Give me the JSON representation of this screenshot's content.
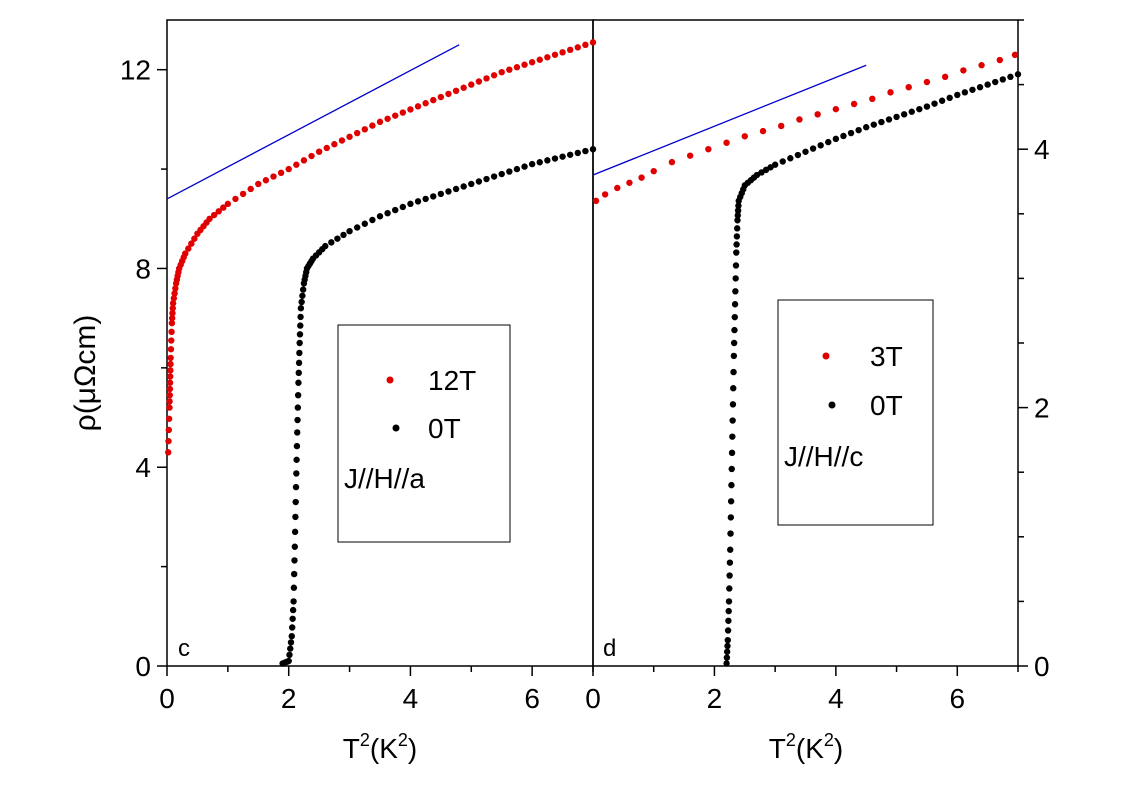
{
  "chart_data": [
    {
      "panel_label": "c",
      "type": "scatter",
      "xlabel_base": "T",
      "xlabel_sup1": "2",
      "xlabel_mid": "(K",
      "xlabel_sup2": "2",
      "xlabel_end": ")",
      "ylabel": "ρ(μΩcm)",
      "xlim": [
        0,
        7
      ],
      "ylim": [
        0,
        13
      ],
      "xticks": [
        "0",
        "2",
        "4",
        "6"
      ],
      "yticks": [
        "0",
        "4",
        "8",
        "12"
      ],
      "legend": {
        "entries": [
          {
            "label": "12T",
            "color": "#e00000"
          },
          {
            "label": "0T",
            "color": "#000000"
          }
        ],
        "note": "J//H//a"
      },
      "guide_line": {
        "x": [
          0,
          4.8
        ],
        "y": [
          9.4,
          12.5
        ],
        "color": "#0000cc"
      },
      "series": [
        {
          "name": "12T",
          "color": "#e00000",
          "x": [
            0.02,
            0.04,
            0.05,
            0.06,
            0.08,
            0.1,
            0.15,
            0.2,
            0.3,
            0.5,
            0.7,
            1.0,
            1.5,
            2.0,
            2.5,
            3.0,
            3.5,
            4.0,
            4.5,
            5.0,
            5.5,
            6.0,
            6.5,
            7.0
          ],
          "y": [
            4.3,
            5.2,
            5.7,
            6.2,
            6.9,
            7.3,
            7.7,
            8.0,
            8.3,
            8.7,
            9.0,
            9.3,
            9.7,
            10.0,
            10.35,
            10.65,
            10.95,
            11.2,
            11.45,
            11.7,
            11.95,
            12.15,
            12.35,
            12.55
          ]
        },
        {
          "name": "0T",
          "color": "#000000",
          "x": [
            1.9,
            2.0,
            2.05,
            2.08,
            2.1,
            2.12,
            2.14,
            2.16,
            2.18,
            2.2,
            2.25,
            2.3,
            2.4,
            2.6,
            3.0,
            3.5,
            4.0,
            4.5,
            5.0,
            5.5,
            6.0,
            6.5,
            7.0
          ],
          "y": [
            0.05,
            0.1,
            0.6,
            1.3,
            2.4,
            3.6,
            4.7,
            5.7,
            6.5,
            7.2,
            7.7,
            8.0,
            8.2,
            8.45,
            8.75,
            9.05,
            9.3,
            9.5,
            9.7,
            9.9,
            10.1,
            10.25,
            10.4
          ]
        }
      ]
    },
    {
      "panel_label": "d",
      "type": "scatter",
      "xlabel_base": "T",
      "xlabel_sup1": "2",
      "xlabel_mid": "(K",
      "xlabel_sup2": "2",
      "xlabel_end": ")",
      "xlim": [
        0,
        7
      ],
      "ylim": [
        0,
        5
      ],
      "xticks": [
        "0",
        "2",
        "4",
        "6"
      ],
      "yticks_right": [
        "0",
        "2",
        "4"
      ],
      "legend": {
        "entries": [
          {
            "label": "3T",
            "color": "#e00000"
          },
          {
            "label": "0T",
            "color": "#000000"
          }
        ],
        "note": "J//H//c"
      },
      "guide_line": {
        "x": [
          0,
          4.5
        ],
        "y": [
          3.8,
          4.65
        ],
        "color": "#0000cc"
      },
      "series": [
        {
          "name": "3T",
          "color": "#e00000",
          "x": [
            0.05,
            0.2,
            0.4,
            0.6,
            0.8,
            1.0,
            1.3,
            1.6,
            1.9,
            2.2,
            2.5,
            2.8,
            3.1,
            3.4,
            3.7,
            4.0,
            4.3,
            4.6,
            4.9,
            5.2,
            5.5,
            5.8,
            6.1,
            6.4,
            6.7,
            6.95
          ],
          "y": [
            3.6,
            3.65,
            3.7,
            3.74,
            3.78,
            3.83,
            3.9,
            3.95,
            4.0,
            4.05,
            4.1,
            4.14,
            4.18,
            4.23,
            4.27,
            4.31,
            4.35,
            4.39,
            4.44,
            4.48,
            4.52,
            4.56,
            4.61,
            4.65,
            4.69,
            4.73
          ]
        },
        {
          "name": "0T",
          "color": "#000000",
          "x": [
            2.2,
            2.22,
            2.24,
            2.26,
            2.28,
            2.3,
            2.32,
            2.34,
            2.36,
            2.38,
            2.4,
            2.5,
            2.7,
            3.0,
            3.5,
            4.0,
            4.5,
            5.0,
            5.5,
            6.0,
            6.5,
            7.0
          ],
          "y": [
            0.02,
            0.2,
            0.5,
            0.9,
            1.4,
            1.9,
            2.4,
            2.8,
            3.2,
            3.45,
            3.6,
            3.72,
            3.8,
            3.88,
            3.98,
            4.08,
            4.17,
            4.25,
            4.33,
            4.42,
            4.5,
            4.58
          ]
        }
      ]
    }
  ]
}
